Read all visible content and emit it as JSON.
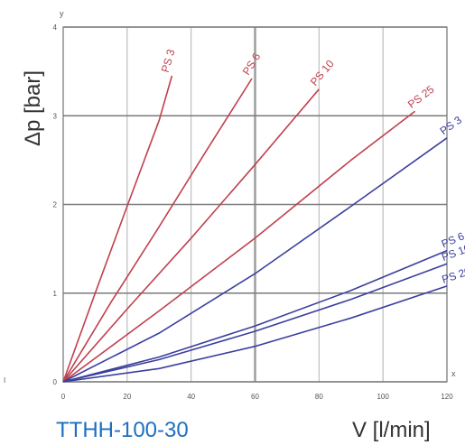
{
  "chart_data": {
    "type": "line",
    "ylabel": "Δp [bar]",
    "xlabel": "V [l/min]",
    "model_label": "TTHH-100-30",
    "y_axis_letter": "y",
    "x_axis_letter": "x",
    "left_marker": "I",
    "xlim": [
      0,
      120
    ],
    "ylim": [
      0,
      4
    ],
    "x_ticks": [
      0,
      20,
      40,
      60,
      80,
      100,
      120
    ],
    "y_ticks": [
      0,
      1,
      2,
      3,
      4
    ],
    "grid": true,
    "colors": {
      "red": "#c0404f",
      "blue": "#3b3f9e",
      "grid": "#bdbdbd",
      "model": "#1e6fc2"
    },
    "series": [
      {
        "name": "PS 3",
        "color": "red",
        "x": [
          0,
          10,
          20,
          30,
          34
        ],
        "y": [
          0,
          1.0,
          1.98,
          2.95,
          3.45
        ]
      },
      {
        "name": "PS 6",
        "color": "red",
        "x": [
          0,
          15,
          30,
          45,
          59
        ],
        "y": [
          0,
          0.9,
          1.75,
          2.62,
          3.42
        ]
      },
      {
        "name": "PS 10",
        "color": "red",
        "x": [
          0,
          20,
          40,
          60,
          80
        ],
        "y": [
          0,
          0.82,
          1.62,
          2.45,
          3.3
        ]
      },
      {
        "name": "PS 25",
        "color": "red",
        "x": [
          0,
          30,
          60,
          90,
          110
        ],
        "y": [
          0,
          0.8,
          1.62,
          2.5,
          3.05
        ]
      },
      {
        "name": "PS 3",
        "color": "blue",
        "x": [
          0,
          30,
          60,
          90,
          120
        ],
        "y": [
          0,
          0.55,
          1.22,
          1.98,
          2.75
        ]
      },
      {
        "name": "PS 6",
        "color": "blue",
        "x": [
          0,
          30,
          60,
          90,
          120
        ],
        "y": [
          0,
          0.28,
          0.63,
          1.03,
          1.48
        ]
      },
      {
        "name": "PS 10",
        "color": "blue",
        "x": [
          0,
          30,
          60,
          90,
          120
        ],
        "y": [
          0,
          0.25,
          0.57,
          0.93,
          1.33
        ]
      },
      {
        "name": "PS 20",
        "color": "blue",
        "x": [
          0,
          30,
          60,
          90,
          120
        ],
        "y": [
          0,
          0.15,
          0.4,
          0.72,
          1.08
        ]
      }
    ]
  }
}
